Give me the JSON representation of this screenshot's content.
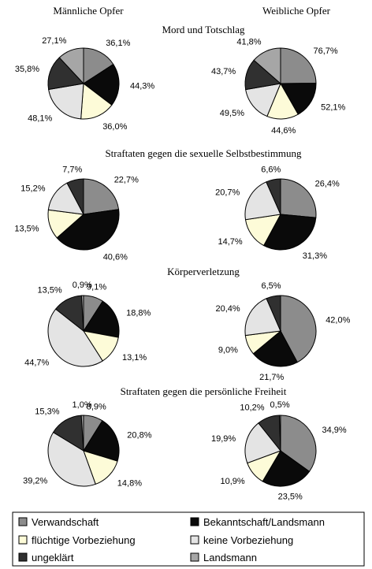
{
  "column_headers": [
    "Männliche Opfer",
    "Weibliche Opfer"
  ],
  "colors": {
    "Verwandschaft": "#8c8c8c",
    "Bekanntschaft/Landsmann": "#0a0a0a",
    "flüchtige Vorbeziehung": "#fdfbd8",
    "keine Vorbeziehung": "#e4e4e4",
    "ungeklärt": "#303030",
    "Landsmann": "#a6a6a6"
  },
  "legend": {
    "items": [
      {
        "label": "Verwandschaft",
        "key": "Verwandschaft"
      },
      {
        "label": "Bekanntschaft/Landsmann",
        "key": "Bekanntschaft/Landsmann"
      },
      {
        "label": "flüchtige Vorbeziehung",
        "key": "flüchtige Vorbeziehung"
      },
      {
        "label": "keine Vorbeziehung",
        "key": "keine Vorbeziehung"
      },
      {
        "label": "ungeklärt",
        "key": "ungeklärt"
      },
      {
        "label": "Landsmann",
        "key": "Landsmann"
      }
    ]
  },
  "chart_data": [
    {
      "type": "pie",
      "section": "Mord und Totschlag",
      "title": "Männliche Opfer",
      "slices": [
        {
          "category": "Verwandschaft",
          "value": 36.1,
          "label": "36,1%"
        },
        {
          "category": "Bekanntschaft/Landsmann",
          "value": 44.3,
          "label": "44,3%"
        },
        {
          "category": "flüchtige Vorbeziehung",
          "value": 36.0,
          "label": "36,0%"
        },
        {
          "category": "keine Vorbeziehung",
          "value": 48.1,
          "label": "48,1%"
        },
        {
          "category": "ungeklärt",
          "value": 35.8,
          "label": "35,8%"
        },
        {
          "category": "Landsmann",
          "value": 27.1,
          "label": "27,1%"
        }
      ]
    },
    {
      "type": "pie",
      "section": "Mord und Totschlag",
      "title": "Weibliche Opfer",
      "slices": [
        {
          "category": "Verwandschaft",
          "value": 76.7,
          "label": "76,7%"
        },
        {
          "category": "Bekanntschaft/Landsmann",
          "value": 52.1,
          "label": "52,1%"
        },
        {
          "category": "flüchtige Vorbeziehung",
          "value": 44.6,
          "label": "44,6%"
        },
        {
          "category": "keine Vorbeziehung",
          "value": 49.5,
          "label": "49,5%"
        },
        {
          "category": "ungeklärt",
          "value": 43.7,
          "label": "43,7%"
        },
        {
          "category": "Landsmann",
          "value": 41.8,
          "label": "41,8%"
        }
      ]
    },
    {
      "type": "pie",
      "section": "Straftaten gegen die sexuelle Selbstbestimmung",
      "title": "Männliche Opfer",
      "slices": [
        {
          "category": "Verwandschaft",
          "value": 22.7,
          "label": "22,7%"
        },
        {
          "category": "Bekanntschaft/Landsmann",
          "value": 40.6,
          "label": "40,6%"
        },
        {
          "category": "flüchtige Vorbeziehung",
          "value": 13.5,
          "label": "13,5%"
        },
        {
          "category": "keine Vorbeziehung",
          "value": 15.2,
          "label": "15,2%"
        },
        {
          "category": "ungeklärt",
          "value": 7.7,
          "label": "7,7%"
        }
      ]
    },
    {
      "type": "pie",
      "section": "Straftaten gegen die sexuelle Selbstbestimmung",
      "title": "Weibliche Opfer",
      "slices": [
        {
          "category": "Verwandschaft",
          "value": 26.4,
          "label": "26,4%"
        },
        {
          "category": "Bekanntschaft/Landsmann",
          "value": 31.3,
          "label": "31,3%"
        },
        {
          "category": "flüchtige Vorbeziehung",
          "value": 14.7,
          "label": "14,7%"
        },
        {
          "category": "keine Vorbeziehung",
          "value": 20.7,
          "label": "20,7%"
        },
        {
          "category": "ungeklärt",
          "value": 6.6,
          "label": "6,6%"
        }
      ]
    },
    {
      "type": "pie",
      "section": "Körperverletzung",
      "title": "Männliche Opfer",
      "slices": [
        {
          "category": "Verwandschaft",
          "value": 9.1,
          "label": "9,1%"
        },
        {
          "category": "Bekanntschaft/Landsmann",
          "value": 18.8,
          "label": "18,8%"
        },
        {
          "category": "flüchtige Vorbeziehung",
          "value": 13.1,
          "label": "13,1%"
        },
        {
          "category": "keine Vorbeziehung",
          "value": 44.7,
          "label": "44,7%"
        },
        {
          "category": "ungeklärt",
          "value": 13.5,
          "label": "13,5%"
        },
        {
          "category": "Landsmann",
          "value": 0.9,
          "label": "0,9%"
        }
      ]
    },
    {
      "type": "pie",
      "section": "Körperverletzung",
      "title": "Weibliche Opfer",
      "slices": [
        {
          "category": "Verwandschaft",
          "value": 42.0,
          "label": "42,0%"
        },
        {
          "category": "Bekanntschaft/Landsmann",
          "value": 21.7,
          "label": "21,7%"
        },
        {
          "category": "flüchtige Vorbeziehung",
          "value": 9.0,
          "label": "9,0%"
        },
        {
          "category": "keine Vorbeziehung",
          "value": 20.4,
          "label": "20,4%"
        },
        {
          "category": "ungeklärt",
          "value": 6.5,
          "label": "6,5%"
        }
      ]
    },
    {
      "type": "pie",
      "section": "Straftaten gegen die persönliche Freiheit",
      "title": "Männliche Opfer",
      "slices": [
        {
          "category": "Verwandschaft",
          "value": 8.9,
          "label": "8,9%"
        },
        {
          "category": "Bekanntschaft/Landsmann",
          "value": 20.8,
          "label": "20,8%"
        },
        {
          "category": "flüchtige Vorbeziehung",
          "value": 14.8,
          "label": "14,8%"
        },
        {
          "category": "keine Vorbeziehung",
          "value": 39.2,
          "label": "39,2%"
        },
        {
          "category": "ungeklärt",
          "value": 15.3,
          "label": "15,3%"
        },
        {
          "category": "Landsmann",
          "value": 1.0,
          "label": "1,0%"
        }
      ]
    },
    {
      "type": "pie",
      "section": "Straftaten gegen die persönliche Freiheit",
      "title": "Weibliche Opfer",
      "slices": [
        {
          "category": "Verwandschaft",
          "value": 34.9,
          "label": "34,9%"
        },
        {
          "category": "Bekanntschaft/Landsmann",
          "value": 23.5,
          "label": "23,5%"
        },
        {
          "category": "flüchtige Vorbeziehung",
          "value": 10.9,
          "label": "10,9%"
        },
        {
          "category": "keine Vorbeziehung",
          "value": 19.9,
          "label": "19,9%"
        },
        {
          "category": "ungeklärt",
          "value": 10.2,
          "label": "10,2%"
        },
        {
          "category": "Landsmann",
          "value": 0.5,
          "label": "0,5%"
        }
      ]
    }
  ]
}
